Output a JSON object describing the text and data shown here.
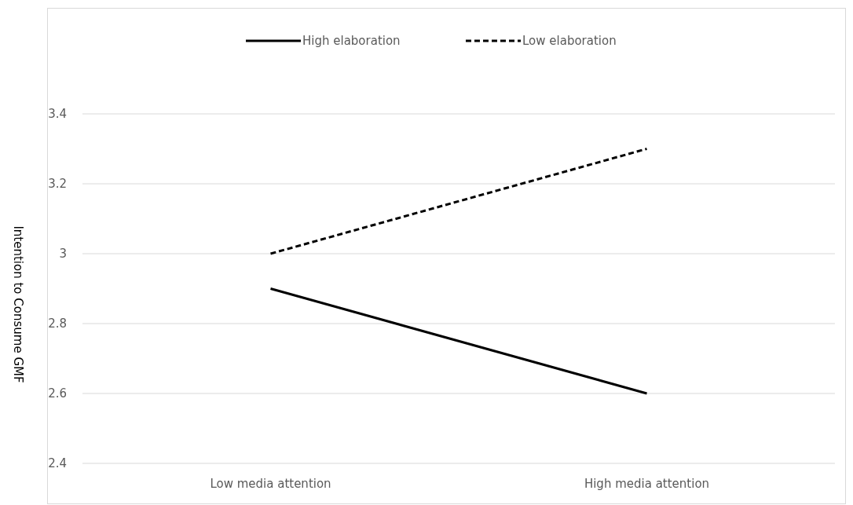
{
  "chart_data": {
    "type": "line",
    "ylabel": "Intention to Consume GMF",
    "categories": [
      "Low media attention",
      "High media attention"
    ],
    "series": [
      {
        "name": "High elaboration",
        "color": "#000000",
        "values": [
          2.9,
          2.6
        ],
        "line_style": "solid"
      },
      {
        "name": "Low elaboration",
        "color": "#000000",
        "values": [
          3.0,
          3.3
        ],
        "line_style": "dashed"
      }
    ],
    "ylim": [
      2.4,
      3.4
    ],
    "yticks": [
      2.4,
      2.6,
      2.8,
      {
        "value": 3,
        "label": "3"
      },
      3.2,
      3.4
    ],
    "grid": "y",
    "legend": "top",
    "marker": "none"
  }
}
